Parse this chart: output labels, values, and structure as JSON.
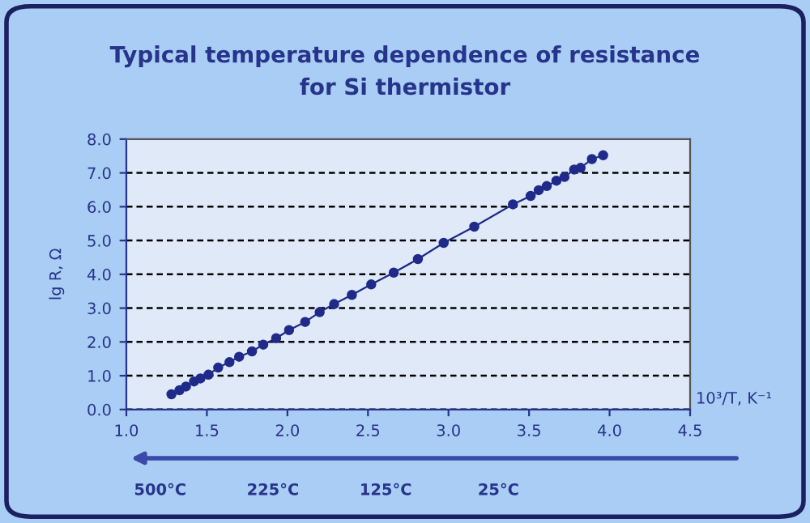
{
  "chart_data": {
    "type": "line",
    "title": "Typical temperature dependence of resistance\nfor Si thermistor",
    "xlabel": "10³/T, K⁻¹",
    "ylabel": "lg R, Ω",
    "series": [
      {
        "color": "#1f2a8a",
        "x": [
          1.28,
          1.33,
          1.37,
          1.42,
          1.46,
          1.51,
          1.57,
          1.64,
          1.7,
          1.78,
          1.85,
          1.93,
          2.01,
          2.11,
          2.2,
          2.29,
          2.4,
          2.52,
          2.66,
          2.81,
          2.97,
          3.16,
          3.4,
          3.51,
          3.56,
          3.61,
          3.67,
          3.72,
          3.78,
          3.82,
          3.89,
          3.96
        ],
        "values": [
          0.45,
          0.57,
          0.68,
          0.83,
          0.92,
          1.03,
          1.24,
          1.4,
          1.56,
          1.72,
          1.92,
          2.11,
          2.35,
          2.59,
          2.88,
          3.12,
          3.39,
          3.7,
          4.05,
          4.45,
          4.93,
          5.41,
          6.07,
          6.32,
          6.49,
          6.61,
          6.77,
          6.88,
          7.1,
          7.15,
          7.41,
          7.52
        ]
      }
    ],
    "marker": "circle",
    "line_style": "solid",
    "grid": "y",
    "legend": false,
    "xlim": [
      1.0,
      4.5
    ],
    "xticks": [
      {
        "value": 1.0,
        "label": "1.0"
      },
      {
        "value": 1.5,
        "label": "1.5"
      },
      {
        "value": 2.0,
        "label": "2.0"
      },
      {
        "value": 2.5,
        "label": "2.5"
      },
      {
        "value": 3.0,
        "label": "3.0"
      },
      {
        "value": 3.5,
        "label": "3.5"
      },
      {
        "value": 4.0,
        "label": "4.0"
      },
      {
        "value": 4.5,
        "label": "4.5"
      }
    ],
    "ylim": [
      0.0,
      8.0
    ],
    "yticks": [
      {
        "value": 0,
        "label": "0.0"
      },
      {
        "value": 1,
        "label": "1.0"
      },
      {
        "value": 2,
        "label": "2.0"
      },
      {
        "value": 3,
        "label": "3.0"
      },
      {
        "value": 4,
        "label": "4.0"
      },
      {
        "value": 5,
        "label": "5.0"
      },
      {
        "value": 6,
        "label": "6.0"
      },
      {
        "value": 7,
        "label": "7.0"
      },
      {
        "value": 8,
        "label": "8.0"
      }
    ],
    "annotations": [
      "500°C",
      "225°C",
      "125°C",
      "25°C"
    ]
  }
}
